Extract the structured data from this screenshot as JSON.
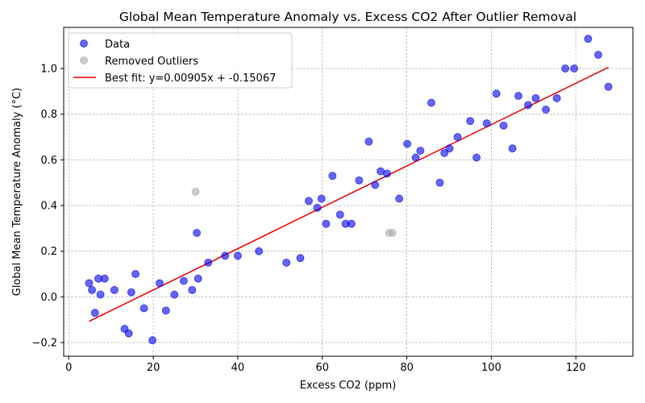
{
  "chart_data": {
    "type": "scatter",
    "title": "Global Mean Temperature Anomaly vs. Excess CO2 After Outlier Removal",
    "xlabel": "Excess CO2 (ppm)",
    "ylabel": "Global Mean Temperature Anomaly (°C)",
    "xlim": [
      -1.2,
      133.5
    ],
    "ylim": [
      -0.26,
      1.18
    ],
    "xticks": [
      0,
      20,
      40,
      60,
      80,
      100,
      120
    ],
    "xtick_labels": [
      "0",
      "20",
      "40",
      "60",
      "80",
      "100",
      "120"
    ],
    "yticks": [
      -0.2,
      0.0,
      0.2,
      0.4,
      0.6,
      0.8,
      1.0
    ],
    "ytick_labels": [
      "−0.2",
      "0.0",
      "0.2",
      "0.4",
      "0.6",
      "0.8",
      "1.0"
    ],
    "grid": true,
    "legend_position": "top-left",
    "series": [
      {
        "name": "Data",
        "kind": "scatter",
        "color": "#0000ee",
        "x": [
          4.8,
          5.5,
          6.2,
          7.0,
          7.5,
          8.5,
          10.8,
          13.2,
          14.2,
          14.8,
          15.8,
          17.8,
          19.8,
          21.5,
          23.0,
          25.0,
          27.2,
          29.2,
          30.3,
          30.6,
          33.0,
          37.0,
          40.0,
          45.0,
          51.5,
          54.8,
          56.8,
          58.8,
          59.8,
          60.9,
          62.4,
          64.2,
          65.5,
          66.9,
          68.7,
          71.0,
          72.5,
          73.8,
          75.3,
          78.2,
          80.1,
          82.1,
          83.2,
          85.8,
          87.8,
          88.9,
          90.1,
          92.0,
          95.0,
          96.5,
          98.9,
          101.2,
          102.9,
          105.0,
          106.4,
          108.7,
          110.5,
          112.9,
          115.5,
          117.5,
          119.6,
          122.9,
          125.3,
          127.7
        ],
        "y": [
          0.06,
          0.03,
          -0.07,
          0.08,
          0.01,
          0.08,
          0.03,
          -0.14,
          -0.16,
          0.02,
          0.1,
          -0.05,
          -0.19,
          0.06,
          -0.06,
          0.01,
          0.07,
          0.03,
          0.28,
          0.08,
          0.15,
          0.18,
          0.18,
          0.2,
          0.15,
          0.17,
          0.42,
          0.39,
          0.43,
          0.32,
          0.53,
          0.36,
          0.32,
          0.32,
          0.51,
          0.68,
          0.49,
          0.55,
          0.54,
          0.43,
          0.67,
          0.61,
          0.64,
          0.85,
          0.5,
          0.63,
          0.65,
          0.7,
          0.77,
          0.61,
          0.76,
          0.89,
          0.75,
          0.65,
          0.88,
          0.84,
          0.87,
          0.82,
          0.87,
          1.0,
          1.0,
          1.13,
          1.06,
          0.92
        ]
      },
      {
        "name": "Removed Outliers",
        "kind": "scatter",
        "color": "#aaaaaa",
        "x": [
          30.0,
          75.8,
          76.6
        ],
        "y": [
          0.46,
          0.28,
          0.28
        ]
      },
      {
        "name": "Best fit: y=0.00905x + -0.15067",
        "kind": "line",
        "color": "#ee0000",
        "slope": 0.00905,
        "intercept": -0.15067,
        "x_range": [
          4.8,
          127.7
        ]
      }
    ]
  }
}
